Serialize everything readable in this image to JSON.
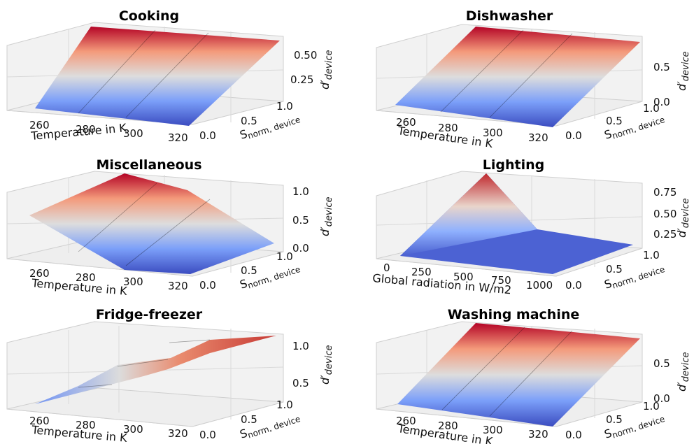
{
  "chart_data": [
    {
      "type": "surface",
      "title": "Cooking",
      "xlabel": "Temperature in K",
      "ylabel": "S",
      "ylabel_sub": "norm, device",
      "zlabel": "d′",
      "zlabel_sub": "device",
      "x_ticks": [
        "260",
        "280",
        "300",
        "320"
      ],
      "y_ticks": [
        "0.0",
        "0.5",
        "1.0"
      ],
      "z_ticks": [
        "0.25",
        "0.50"
      ],
      "x_range": [
        245,
        330
      ],
      "y_range": [
        0,
        1
      ],
      "z_range": [
        0,
        0.65
      ]
    },
    {
      "type": "surface",
      "title": "Dishwasher",
      "xlabel": "Temperature in K",
      "ylabel": "S",
      "ylabel_sub": "norm, device",
      "zlabel": "d′",
      "zlabel_sub": "device",
      "x_ticks": [
        "260",
        "280",
        "300",
        "320"
      ],
      "y_ticks": [
        "0.0",
        "0.5",
        "1.0"
      ],
      "z_ticks": [
        "0.0",
        "0.5"
      ],
      "x_range": [
        245,
        330
      ],
      "y_range": [
        0,
        1
      ],
      "z_range": [
        0,
        0.9
      ]
    },
    {
      "type": "surface",
      "title": "Miscellaneous",
      "xlabel": "Temperature in K",
      "ylabel": "S",
      "ylabel_sub": "norm, device",
      "zlabel": "d′",
      "zlabel_sub": "device",
      "x_ticks": [
        "260",
        "280",
        "300",
        "320"
      ],
      "y_ticks": [
        "0.0",
        "0.5",
        "1.0"
      ],
      "z_ticks": [
        "0.0",
        "0.5",
        "1.0"
      ],
      "x_range": [
        245,
        330
      ],
      "y_range": [
        0,
        1
      ],
      "z_range": [
        0,
        1.1
      ]
    },
    {
      "type": "surface",
      "title": "Lighting",
      "xlabel": "Global radiation in W/m2",
      "ylabel": "S",
      "ylabel_sub": "norm, device",
      "zlabel": "d′",
      "zlabel_sub": "device",
      "x_ticks": [
        "0",
        "250",
        "500",
        "750",
        "1000"
      ],
      "y_ticks": [
        "0.0",
        "0.5",
        "1.0"
      ],
      "z_ticks": [
        "0.25",
        "0.50",
        "0.75"
      ],
      "x_range": [
        0,
        1000
      ],
      "y_range": [
        0,
        1
      ],
      "z_range": [
        0,
        0.85
      ]
    },
    {
      "type": "surface",
      "title": "Fridge-freezer",
      "xlabel": "Temperature in K",
      "ylabel": "S",
      "ylabel_sub": "norm, device",
      "zlabel": "d′",
      "zlabel_sub": "device",
      "x_ticks": [
        "260",
        "280",
        "300",
        "320"
      ],
      "y_ticks": [
        "0.0",
        "0.5",
        "1.0"
      ],
      "z_ticks": [
        "0.5",
        "1.0"
      ],
      "x_range": [
        245,
        330
      ],
      "y_range": [
        0,
        1
      ],
      "z_range": [
        0.3,
        1.15
      ]
    },
    {
      "type": "surface",
      "title": "Washing machine",
      "xlabel": "Temperature in K",
      "ylabel": "S",
      "ylabel_sub": "norm, device",
      "zlabel": "d′",
      "zlabel_sub": "device",
      "x_ticks": [
        "260",
        "280",
        "300",
        "320"
      ],
      "y_ticks": [
        "0.0",
        "0.5",
        "1.0"
      ],
      "z_ticks": [
        "0.0",
        "0.5"
      ],
      "x_range": [
        245,
        330
      ],
      "y_range": [
        0,
        1
      ],
      "z_range": [
        0,
        0.9
      ]
    }
  ],
  "colormap": {
    "name": "coolwarm",
    "low": "#3b4cc0",
    "mid": "#dddddd",
    "high": "#b40426"
  }
}
